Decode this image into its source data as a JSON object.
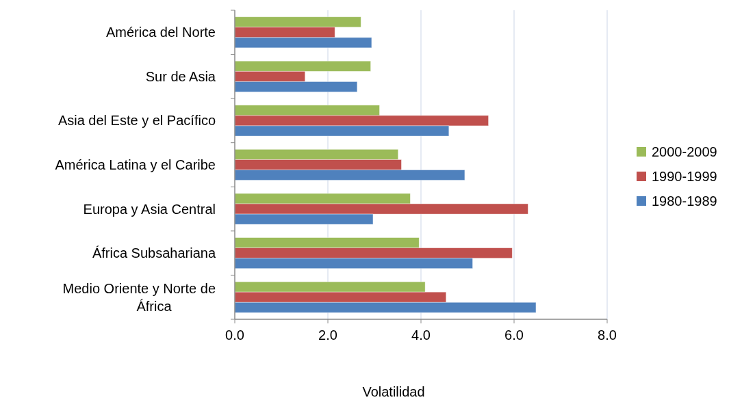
{
  "chart_data": {
    "type": "bar",
    "orientation": "horizontal",
    "xlabel": "Volatilidad",
    "categories": [
      "América del Norte",
      "Sur de Asia",
      "Asia del Este y el Pacífico",
      "América Latina y el Caribe",
      "Europa y Asia Central",
      "África Subsahariana",
      "Medio Oriente y Norte de África"
    ],
    "series": [
      {
        "name": "2000-2009",
        "color": "#9bbb59",
        "values": [
          2.71,
          2.92,
          3.11,
          3.51,
          3.77,
          3.96,
          4.09
        ]
      },
      {
        "name": "1990-1999",
        "color": "#c0504d",
        "values": [
          2.15,
          1.51,
          5.45,
          3.58,
          6.3,
          5.96,
          4.54
        ]
      },
      {
        "name": "1980-1989",
        "color": "#4f81bd",
        "values": [
          2.94,
          2.63,
          4.6,
          4.94,
          2.97,
          5.11,
          6.47
        ]
      }
    ],
    "xlim": [
      0,
      8
    ],
    "xticks": [
      {
        "value": 0,
        "label": "0.0"
      },
      {
        "value": 2,
        "label": "2.0"
      },
      {
        "value": 4,
        "label": "4.0"
      },
      {
        "value": 6,
        "label": "6.0"
      },
      {
        "value": 8,
        "label": "8.0"
      }
    ],
    "grid": "x",
    "legend": "right"
  }
}
